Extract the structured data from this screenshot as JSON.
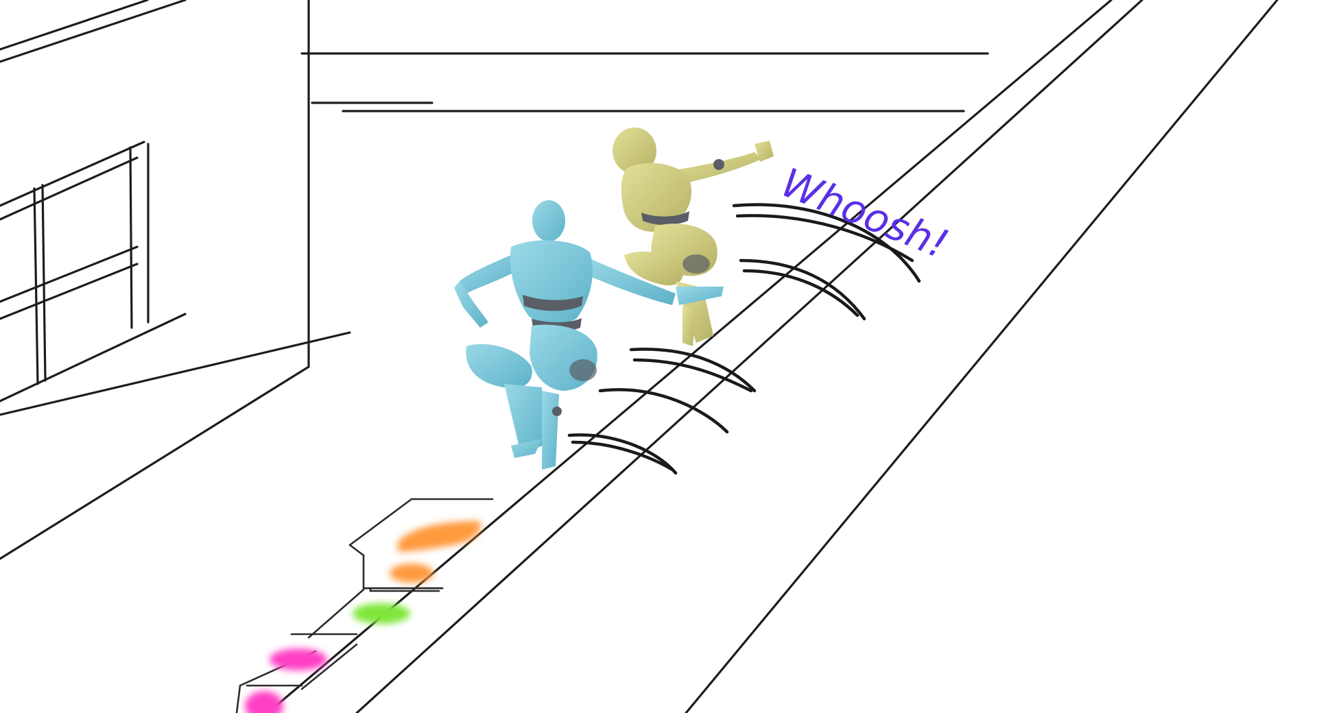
{
  "sound_effect": {
    "text": "Whoosh!"
  },
  "colors": {
    "line_ink": "#1c1c1c",
    "mannequin_blue": "#7ec9dc",
    "mannequin_blue_shade": "#4f9fb6",
    "mannequin_yellow": "#d9d58a",
    "mannequin_yellow_shade": "#a9a65c",
    "joint_gray": "#5a5e66",
    "sfx_purple": "#5a2fe6",
    "swatch_orange": "#ff9a3c",
    "swatch_green": "#7fe63a",
    "swatch_magenta": "#ff3fc4"
  },
  "figures": [
    {
      "name": "blue-mannequin",
      "color": "mannequin_blue"
    },
    {
      "name": "yellow-mannequin",
      "color": "mannequin_yellow"
    }
  ]
}
